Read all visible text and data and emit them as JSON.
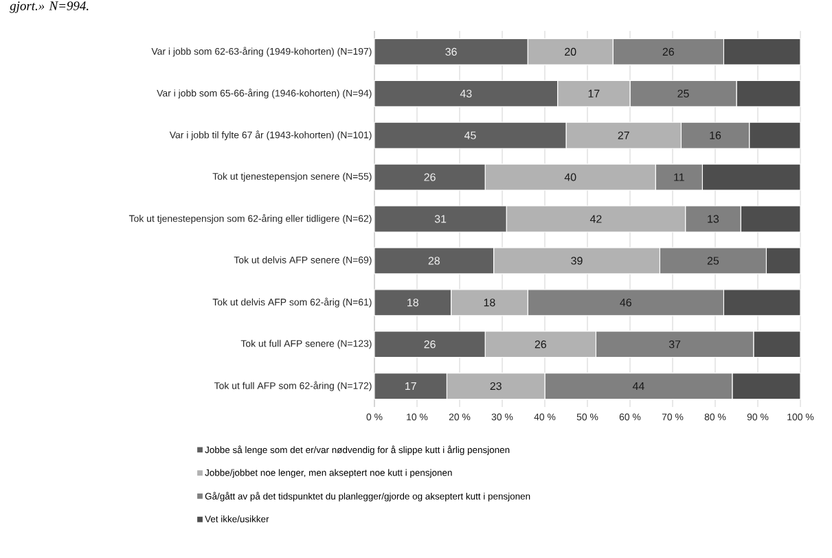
{
  "chart_data": {
    "type": "bar",
    "orientation": "horizontal",
    "stacked": true,
    "annotations": [
      "gjort.» N=994."
    ],
    "categories": [
      "Var i jobb som 62-63-åring (1949-kohorten) (N=197)",
      "Var i jobb som 65-66-åring (1946-kohorten) (N=94)",
      "Var i jobb til fylte 67 år (1943-kohorten) (N=101)",
      "Tok ut tjenestepensjon senere (N=55)",
      "Tok ut tjenestepensjon som 62-åring eller tidligere (N=62)",
      "Tok ut delvis AFP senere (N=69)",
      "Tok ut delvis AFP som 62-årig (N=61)",
      "Tok ut full AFP senere (N=123)",
      "Tok ut full AFP som 62-åring (N=172)"
    ],
    "series": [
      {
        "name": "Jobbe så lenge som det er/var nødvendig for å slippe kutt i årlig pensjonen",
        "color": "#5f5f5f",
        "values": [
          36,
          43,
          45,
          26,
          31,
          28,
          18,
          26,
          17
        ],
        "value_labels": [
          "36",
          "43",
          "45",
          "26",
          "31",
          "28",
          "18",
          "26",
          "17"
        ]
      },
      {
        "name": "Jobbe/jobbet noe lenger, men akseptert noe kutt i pensjonen",
        "color": "#b2b2b2",
        "values": [
          20,
          17,
          27,
          40,
          42,
          39,
          18,
          26,
          23
        ],
        "value_labels": [
          "20",
          "17",
          "27",
          "40",
          "42",
          "39",
          "18",
          "26",
          "23"
        ]
      },
      {
        "name": "Gå/gått av på det tidspunktet du planlegger/gjorde og akseptert kutt i pensjonen",
        "color": "#808080",
        "values": [
          26,
          25,
          16,
          11,
          13,
          25,
          46,
          37,
          44
        ],
        "value_labels": [
          "26",
          "25",
          "16",
          "11",
          "13",
          "25",
          "46",
          "37",
          "44"
        ]
      },
      {
        "name": "Vet ikke/usikker",
        "color": "#4d4d4d",
        "values": [
          18,
          15,
          12,
          23,
          14,
          8,
          18,
          11,
          16
        ]
      }
    ],
    "xlim": [
      0,
      100
    ],
    "xticks": [
      {
        "value": 0,
        "label": "0 %"
      },
      {
        "value": 10,
        "label": "10 %"
      },
      {
        "value": 20,
        "label": "20 %"
      },
      {
        "value": 30,
        "label": "30 %"
      },
      {
        "value": 40,
        "label": "40 %"
      },
      {
        "value": 50,
        "label": "50 %"
      },
      {
        "value": 60,
        "label": "60 %"
      },
      {
        "value": 70,
        "label": "70 %"
      },
      {
        "value": 80,
        "label": "80 %"
      },
      {
        "value": 90,
        "label": "90 %"
      },
      {
        "value": 100,
        "label": "100 %"
      }
    ],
    "grid": "x",
    "legend": "bottom"
  }
}
